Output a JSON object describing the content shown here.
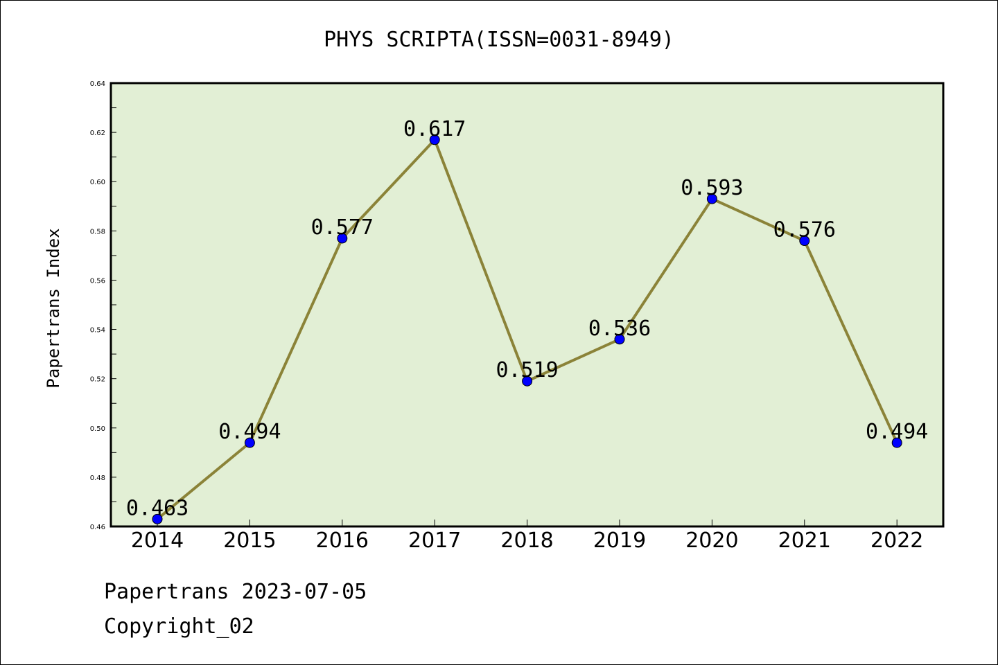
{
  "chart_data": {
    "type": "line",
    "title": "PHYS SCRIPTA(ISSN=0031-8949)",
    "xlabel": "",
    "ylabel": "Papertrans Index",
    "categories": [
      "2014",
      "2015",
      "2016",
      "2017",
      "2018",
      "2019",
      "2020",
      "2021",
      "2022"
    ],
    "values": [
      0.463,
      0.494,
      0.577,
      0.617,
      0.519,
      0.536,
      0.593,
      0.576,
      0.494
    ],
    "data_labels": [
      "0.463",
      "0.494",
      "0.577",
      "0.617",
      "0.519",
      "0.536",
      "0.593",
      "0.576",
      "0.494"
    ],
    "ylim": [
      0.46,
      0.64
    ],
    "yticks": [
      "0.46",
      "0.48",
      "0.50",
      "0.52",
      "0.54",
      "0.56",
      "0.58",
      "0.60",
      "0.62",
      "0.64"
    ],
    "grid": false,
    "legend": "none",
    "colors": {
      "plot_background": "#e2efd5",
      "line": "#8b8338",
      "marker": "#0000ff",
      "marker_edge": "#000000"
    }
  },
  "footer": {
    "line1": "Papertrans 2023-07-05",
    "line2": "Copyright_02"
  }
}
